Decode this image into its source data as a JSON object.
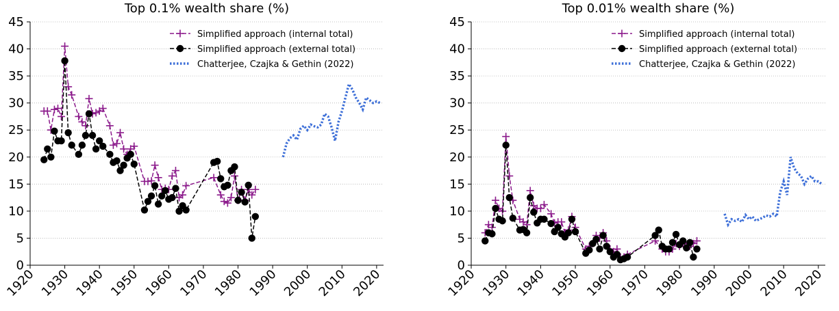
{
  "chart_data": [
    {
      "type": "line",
      "title": "Top 0.1% wealth share (%)",
      "xlim": [
        1920,
        2022
      ],
      "ylim": [
        0,
        45
      ],
      "xticks": [
        1920,
        1930,
        1940,
        1950,
        1960,
        1970,
        1980,
        1990,
        2000,
        2010,
        2020
      ],
      "yticks": [
        0,
        5,
        10,
        15,
        20,
        25,
        30,
        35,
        40,
        45
      ],
      "grid": "horizontal dotted",
      "legend_position": "top-right",
      "series": [
        {
          "name": "Simplified approach (internal total)",
          "color": "#8b1a8b",
          "style": "dashed",
          "marker": "plus",
          "x": [
            1924,
            1925,
            1926,
            1927,
            1928,
            1929,
            1930,
            1931,
            1932,
            1934,
            1935,
            1936,
            1937,
            1938,
            1939,
            1940,
            1941,
            1943,
            1944,
            1945,
            1946,
            1947,
            1948,
            1949,
            1950,
            1953,
            1954,
            1955,
            1956,
            1957,
            1958,
            1959,
            1960,
            1961,
            1962,
            1963,
            1964,
            1965,
            1973,
            1975,
            1976,
            1977,
            1978,
            1979,
            1980,
            1981,
            1982,
            1983,
            1984,
            1985
          ],
          "y": [
            28.5,
            28.5,
            25.0,
            28.8,
            29.0,
            27.5,
            40.5,
            33.0,
            31.5,
            27.5,
            26.5,
            25.8,
            30.8,
            28.0,
            28.2,
            28.5,
            29.0,
            25.8,
            22.2,
            22.5,
            24.5,
            21.5,
            20.5,
            21.5,
            22.0,
            15.5,
            15.5,
            15.6,
            18.5,
            16.2,
            14.0,
            14.2,
            14.0,
            16.5,
            17.5,
            12.5,
            13.0,
            14.7,
            16.2,
            13.0,
            11.8,
            11.5,
            12.5,
            16.5,
            12.0,
            14.0,
            12.0,
            14.0,
            13.0,
            14.0
          ]
        },
        {
          "name": "Simplified approach (external total)",
          "color": "#000000",
          "style": "dashed",
          "marker": "circle",
          "x": [
            1924,
            1925,
            1926,
            1927,
            1928,
            1929,
            1930,
            1931,
            1932,
            1934,
            1935,
            1936,
            1937,
            1938,
            1939,
            1940,
            1941,
            1943,
            1944,
            1945,
            1946,
            1947,
            1948,
            1949,
            1950,
            1953,
            1954,
            1955,
            1956,
            1957,
            1958,
            1959,
            1960,
            1961,
            1962,
            1963,
            1964,
            1965,
            1973,
            1974,
            1975,
            1976,
            1977,
            1978,
            1979,
            1980,
            1981,
            1982,
            1983,
            1984,
            1985
          ],
          "y": [
            19.5,
            21.5,
            20.0,
            24.8,
            23.0,
            23.0,
            37.8,
            24.5,
            22.2,
            20.5,
            22.2,
            24.0,
            28.0,
            24.0,
            21.5,
            23.0,
            22.0,
            20.5,
            19.0,
            19.3,
            17.5,
            18.5,
            19.8,
            20.5,
            18.7,
            10.2,
            11.8,
            12.8,
            14.7,
            11.3,
            12.8,
            13.8,
            12.2,
            12.5,
            14.2,
            10.0,
            11.0,
            10.2,
            19.0,
            19.2,
            16.0,
            14.5,
            14.8,
            17.5,
            18.2,
            12.0,
            13.5,
            11.7,
            14.8,
            5.0,
            9.0
          ]
        },
        {
          "name": "Chatterjee, Czajka & Gethin (2022)",
          "color": "#3d6fd8",
          "style": "dotted",
          "marker": "none",
          "x": [
            1993,
            1994,
            1995,
            1996,
            1997,
            1998,
            1999,
            2000,
            2001,
            2002,
            2003,
            2004,
            2005,
            2006,
            2007,
            2008,
            2009,
            2010,
            2011,
            2012,
            2013,
            2014,
            2015,
            2016,
            2017,
            2018,
            2019,
            2020,
            2021
          ],
          "y": [
            20.0,
            22.5,
            23.5,
            24.0,
            23.2,
            25.2,
            25.8,
            25.0,
            26.0,
            25.7,
            25.5,
            26.0,
            28.0,
            27.5,
            25.5,
            23.0,
            26.5,
            28.5,
            31.0,
            33.5,
            32.5,
            31.0,
            30.0,
            28.8,
            31.0,
            30.5,
            30.0,
            30.3,
            30.0
          ]
        }
      ]
    },
    {
      "type": "line",
      "title": "Top 0.01% wealth share (%)",
      "xlim": [
        1920,
        2022
      ],
      "ylim": [
        0,
        45
      ],
      "xticks": [
        1920,
        1930,
        1940,
        1950,
        1960,
        1970,
        1980,
        1990,
        2000,
        2010,
        2020
      ],
      "yticks": [
        0,
        5,
        10,
        15,
        20,
        25,
        30,
        35,
        40,
        45
      ],
      "grid": "horizontal dotted",
      "legend_position": "top-right",
      "series": [
        {
          "name": "Simplified approach (internal total)",
          "color": "#8b1a8b",
          "style": "dashed",
          "marker": "plus",
          "x": [
            1924,
            1925,
            1926,
            1927,
            1928,
            1929,
            1930,
            1931,
            1932,
            1934,
            1935,
            1936,
            1937,
            1938,
            1939,
            1940,
            1941,
            1943,
            1944,
            1945,
            1946,
            1947,
            1948,
            1949,
            1950,
            1953,
            1954,
            1955,
            1956,
            1957,
            1958,
            1959,
            1960,
            1961,
            1962,
            1963,
            1964,
            1965,
            1973,
            1975,
            1976,
            1977,
            1978,
            1979,
            1980,
            1981,
            1982,
            1983,
            1984,
            1985
          ],
          "y": [
            6.0,
            7.5,
            7.0,
            12.0,
            10.5,
            10.0,
            23.8,
            16.5,
            12.0,
            8.5,
            8.0,
            7.5,
            13.8,
            11.0,
            10.5,
            10.5,
            11.2,
            9.5,
            7.8,
            8.0,
            8.0,
            6.0,
            6.5,
            9.0,
            7.0,
            3.0,
            3.5,
            4.0,
            5.5,
            5.0,
            6.0,
            4.5,
            3.0,
            2.5,
            3.0,
            1.5,
            1.5,
            2.0,
            4.5,
            3.0,
            2.5,
            2.5,
            3.0,
            4.0,
            3.5,
            4.0,
            3.5,
            3.5,
            4.0,
            4.5
          ]
        },
        {
          "name": "Simplified approach (external total)",
          "color": "#000000",
          "style": "dashed",
          "marker": "circle",
          "x": [
            1924,
            1925,
            1926,
            1927,
            1928,
            1929,
            1930,
            1931,
            1932,
            1934,
            1935,
            1936,
            1937,
            1938,
            1939,
            1940,
            1941,
            1943,
            1944,
            1945,
            1946,
            1947,
            1948,
            1949,
            1950,
            1953,
            1954,
            1955,
            1956,
            1957,
            1958,
            1959,
            1960,
            1961,
            1962,
            1963,
            1964,
            1965,
            1973,
            1974,
            1975,
            1976,
            1977,
            1978,
            1979,
            1980,
            1981,
            1982,
            1983,
            1984,
            1985
          ],
          "y": [
            4.5,
            6.0,
            5.8,
            10.5,
            8.5,
            8.2,
            22.2,
            12.5,
            8.7,
            6.5,
            6.6,
            6.0,
            12.5,
            9.8,
            7.8,
            8.5,
            8.5,
            7.7,
            6.2,
            7.0,
            5.8,
            5.2,
            6.0,
            8.5,
            6.2,
            2.2,
            2.8,
            4.0,
            4.8,
            3.0,
            5.5,
            3.5,
            2.5,
            1.5,
            2.0,
            1.0,
            1.2,
            1.5,
            5.5,
            6.5,
            3.5,
            3.0,
            3.0,
            4.2,
            5.7,
            3.8,
            4.5,
            3.2,
            4.2,
            1.5,
            3.0
          ]
        },
        {
          "name": "Chatterjee, Czajka & Gethin (2022)",
          "color": "#3d6fd8",
          "style": "dotted",
          "marker": "none",
          "x": [
            1993,
            1994,
            1995,
            1996,
            1997,
            1998,
            1999,
            2000,
            2001,
            2002,
            2003,
            2004,
            2005,
            2006,
            2007,
            2008,
            2009,
            2010,
            2011,
            2012,
            2013,
            2014,
            2015,
            2016,
            2017,
            2018,
            2019,
            2020,
            2021
          ],
          "y": [
            9.5,
            7.5,
            8.5,
            8.2,
            8.5,
            8.0,
            9.3,
            8.5,
            9.0,
            8.2,
            8.5,
            8.8,
            9.2,
            9.0,
            9.5,
            9.0,
            13.5,
            15.5,
            13.0,
            20.0,
            18.0,
            17.0,
            16.5,
            15.0,
            16.0,
            16.5,
            15.5,
            15.5,
            15.0
          ]
        }
      ]
    }
  ]
}
